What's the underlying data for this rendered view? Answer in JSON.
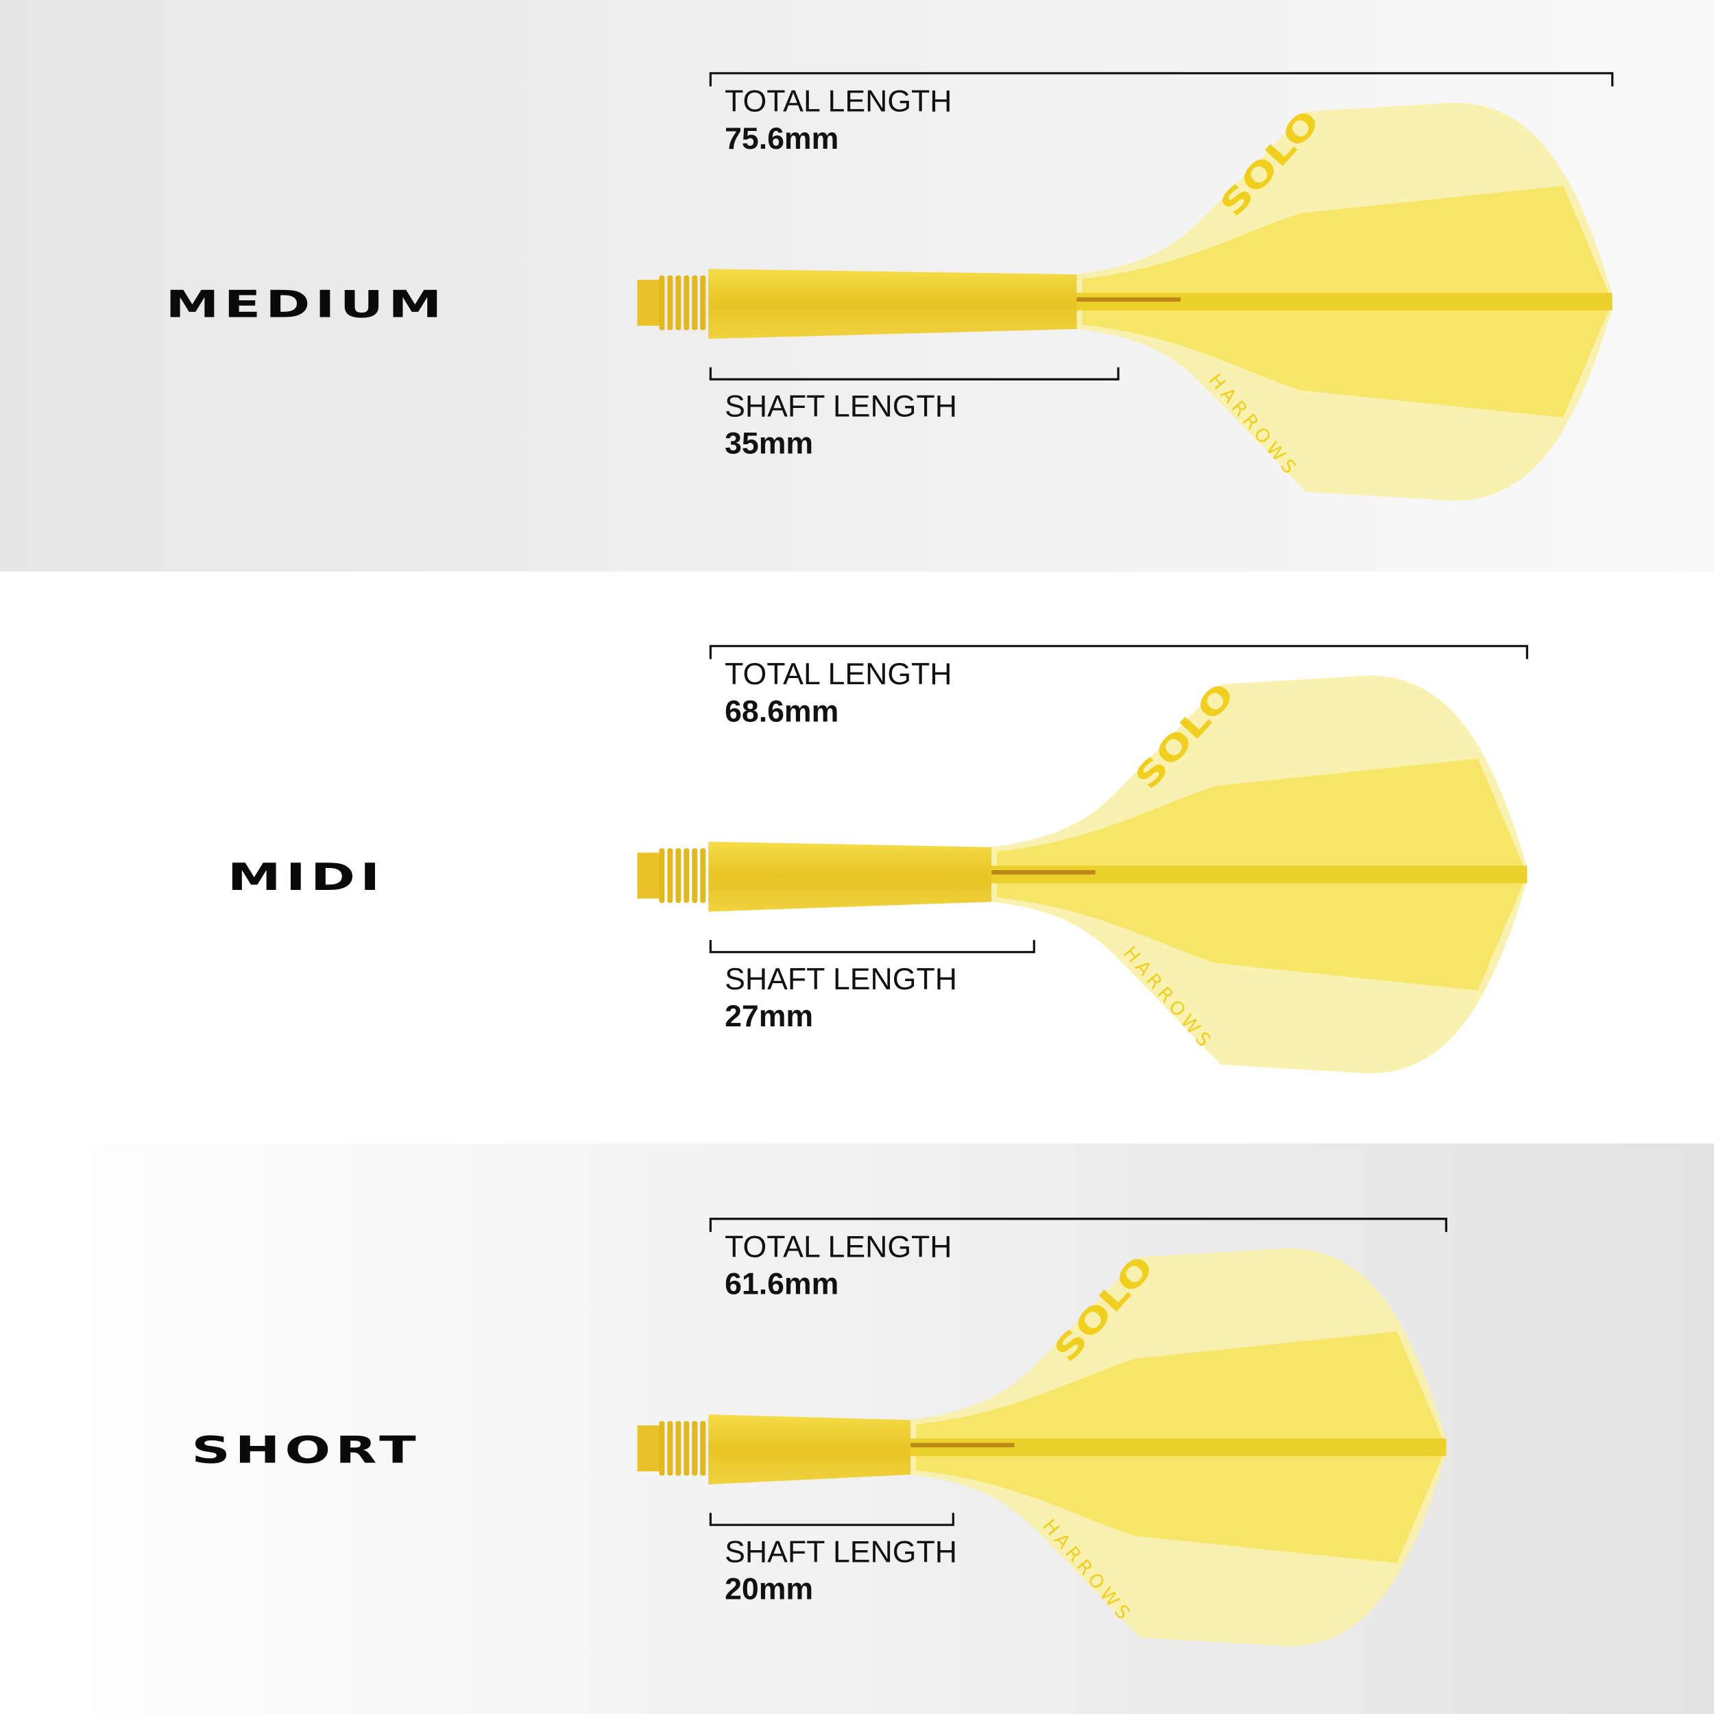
{
  "colors": {
    "flight_light": "#f8f0a8",
    "flight_mid": "#f5e35e",
    "shaft": "#f2d43a",
    "thread": "#e9c22a",
    "text": "#111111"
  },
  "labels": {
    "total": "TOTAL LENGTH",
    "shaft": "SHAFT LENGTH"
  },
  "logos": {
    "top": "SOLO",
    "bottom": "HARROWS"
  },
  "variants": [
    {
      "name": "MEDIUM",
      "total_length": "75.6mm",
      "shaft_length": "35mm"
    },
    {
      "name": "MIDI",
      "total_length": "68.6mm",
      "shaft_length": "27mm"
    },
    {
      "name": "SHORT",
      "total_length": "61.6mm",
      "shaft_length": "20mm"
    }
  ]
}
